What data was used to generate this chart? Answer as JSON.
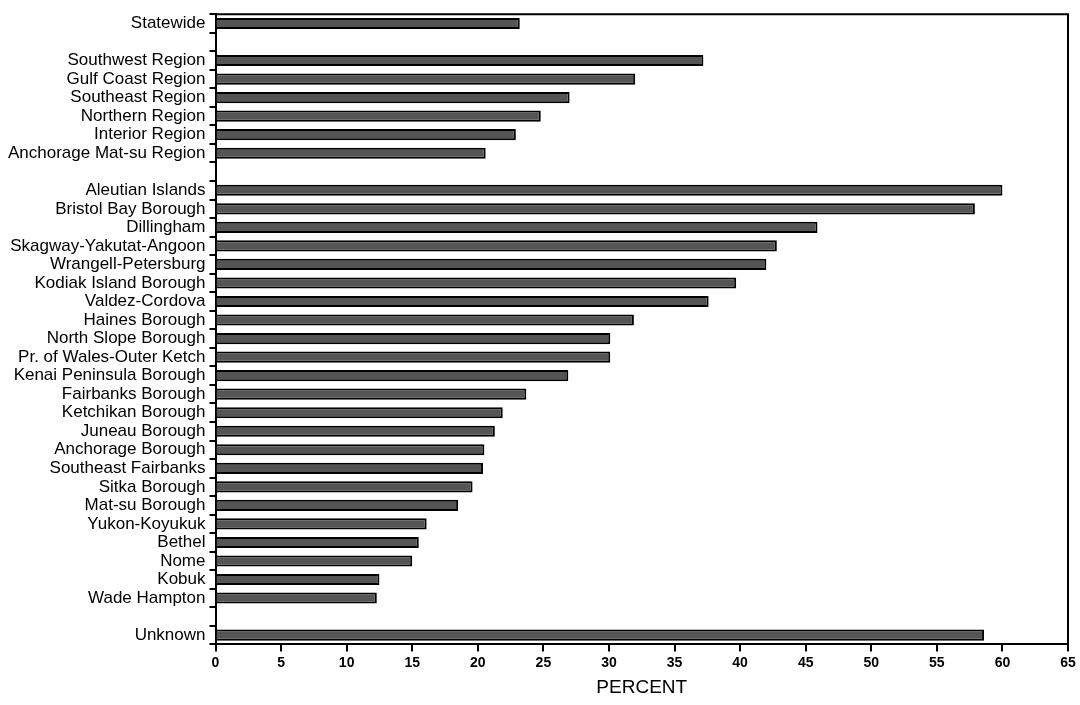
{
  "chart_data": {
    "type": "bar",
    "orientation": "horizontal",
    "xlabel": "PERCENT",
    "categories": [
      "Statewide",
      null,
      "Southwest Region",
      "Gulf Coast Region",
      "Southeast Region",
      "Northern Region",
      "Interior Region",
      "Anchorage Mat-su Region",
      null,
      "Aleutian Islands",
      "Bristol Bay Borough",
      "Dillingham",
      "Skagway-Yakutat-Angoon",
      "Wrangell-Petersburg",
      "Kodiak Island Borough",
      "Valdez-Cordova",
      "Haines Borough",
      "North Slope Borough",
      "Pr. of Wales-Outer Ketch",
      "Kenai Peninsula Borough",
      "Fairbanks Borough",
      "Ketchikan Borough",
      "Juneau Borough",
      "Anchorage Borough",
      "Southeast Fairbanks",
      "Sitka Borough",
      "Mat-su Borough",
      "Yukon-Koyukuk",
      "Bethel",
      "Nome",
      "Kobuk",
      "Wade Hampton",
      null,
      "Unknown"
    ],
    "values": [
      23.2,
      null,
      37.2,
      32.0,
      27.0,
      24.8,
      22.9,
      20.6,
      null,
      60.0,
      57.9,
      45.9,
      42.8,
      42.0,
      39.7,
      37.6,
      31.9,
      30.1,
      30.1,
      26.9,
      23.7,
      21.9,
      21.3,
      20.5,
      20.4,
      19.6,
      18.5,
      16.1,
      15.5,
      15.0,
      12.5,
      12.3,
      null,
      58.6
    ],
    "color": "#555555",
    "xlim": [
      0,
      65
    ],
    "xticks": [
      0,
      5,
      10,
      15,
      20,
      25,
      30,
      35,
      40,
      45,
      50,
      55,
      60,
      65
    ],
    "grid": false,
    "legend": false
  }
}
